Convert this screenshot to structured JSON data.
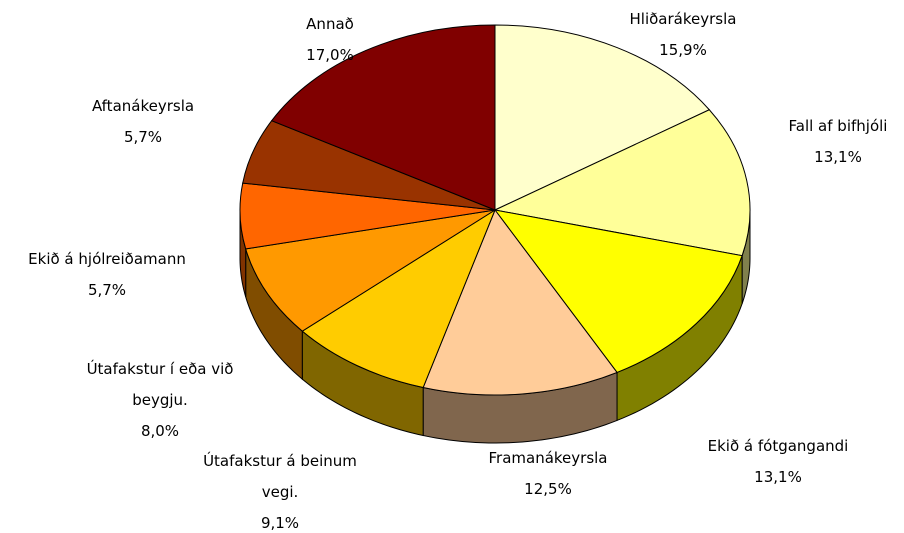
{
  "chart_data": {
    "type": "pie",
    "categories": [
      "Hliðarákeyrsla",
      "Fall af bifhjóli",
      "Ekið á fótgangandi",
      "Framanákeyrsla",
      "Útafakstur á beinum vegi.",
      "Útafakstur í eða við beygju.",
      "Ekið á hjólreiðamann",
      "Aftanákeyrsla",
      "Annað"
    ],
    "values": [
      15.9,
      13.1,
      13.1,
      12.5,
      9.1,
      8.0,
      5.7,
      5.7,
      17.0
    ],
    "value_labels": [
      "15,9%",
      "13,1%",
      "13,1%",
      "12,5%",
      "9,1%",
      "8,0%",
      "5,7%",
      "5,7%",
      "17,0%"
    ],
    "colors": [
      "#FFFFCC",
      "#FFFF99",
      "#FFFF00",
      "#FFCC99",
      "#FFCC00",
      "#FF9900",
      "#FF6600",
      "#993300",
      "#800000"
    ]
  }
}
